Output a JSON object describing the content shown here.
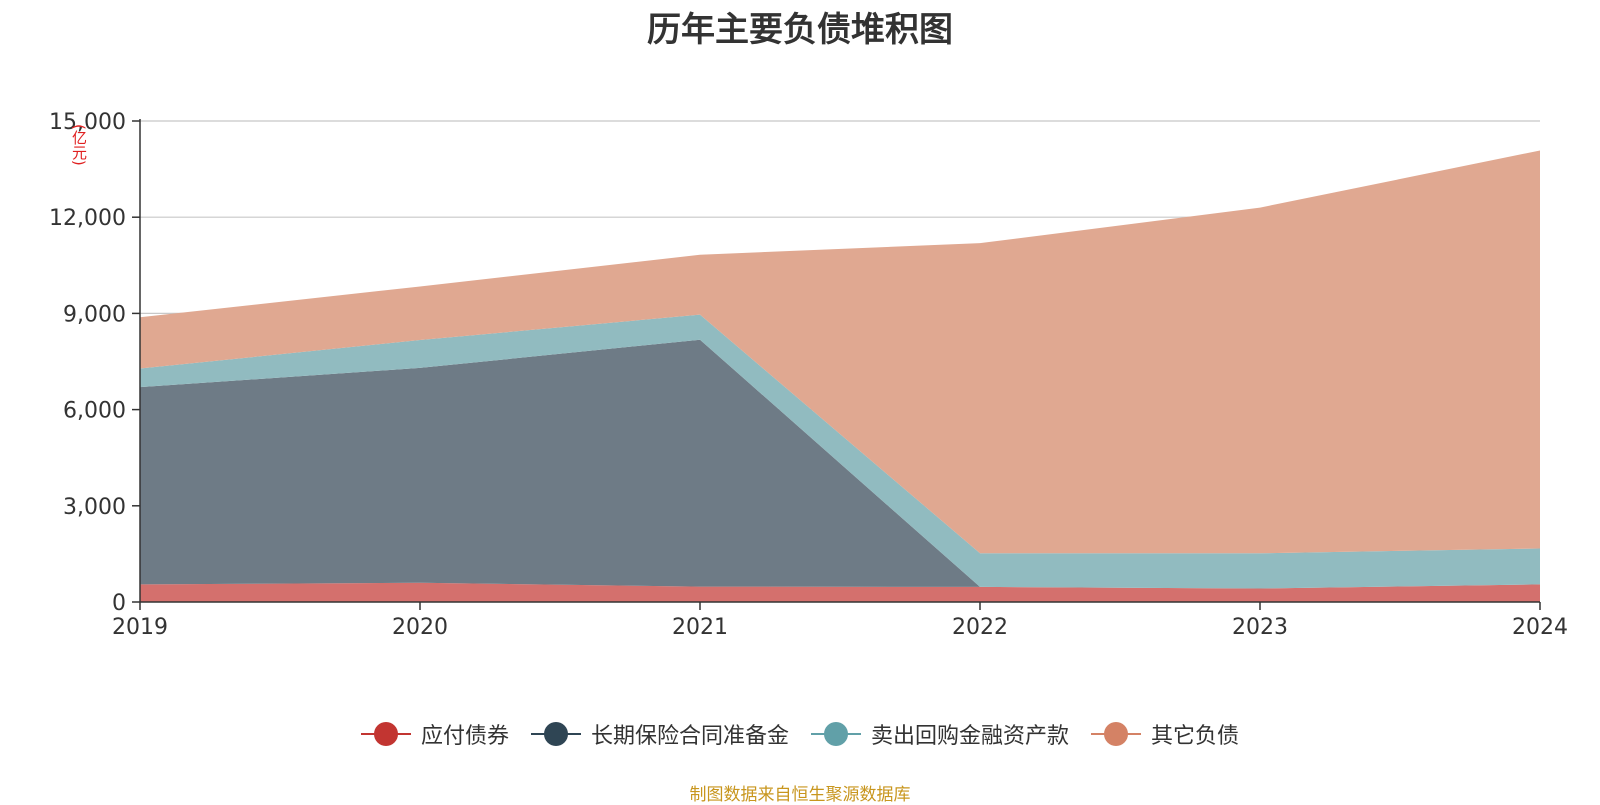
{
  "title": "历年主要负债堆积图",
  "unit_label": "(亿元)",
  "source_text": "制图数据来自恒生聚源数据库",
  "chart_data": {
    "type": "area",
    "stacked": true,
    "x": [
      "2019",
      "2020",
      "2021",
      "2022",
      "2023",
      "2024"
    ],
    "ylim": [
      0,
      15000
    ],
    "yticks": [
      0,
      3000,
      6000,
      9000,
      12000,
      15000
    ],
    "ytick_labels": [
      "0",
      "3,000",
      "6,000",
      "9,000",
      "12,000",
      "15,000"
    ],
    "grid": true,
    "legend_position": "bottom",
    "series": [
      {
        "name": "应付债券",
        "color": "#c23531",
        "area_color": "#d4706d",
        "values": [
          550,
          600,
          480,
          470,
          420,
          550
        ]
      },
      {
        "name": "长期保险合同准备金",
        "color": "#2f4554",
        "area_color": "#6e7b86",
        "values": [
          6150,
          6700,
          7700,
          0,
          0,
          0
        ]
      },
      {
        "name": "卖出回购金融资产款",
        "color": "#61a0a8",
        "area_color": "#91bbc0",
        "values": [
          580,
          870,
          780,
          1050,
          1100,
          1120
        ]
      },
      {
        "name": "其它负债",
        "color": "#d48265",
        "area_color": "#e0a891",
        "values": [
          1600,
          1670,
          1870,
          9670,
          10780,
          12410
        ]
      }
    ]
  }
}
